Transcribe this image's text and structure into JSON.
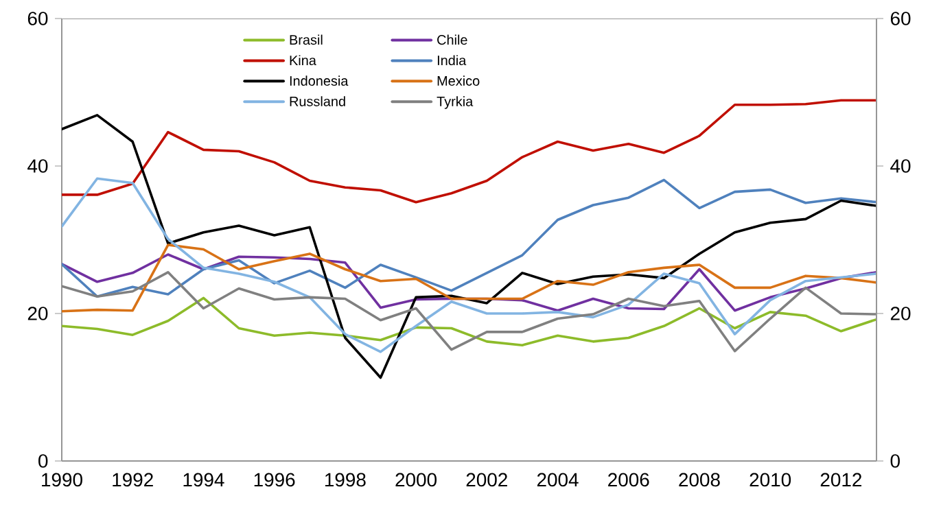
{
  "chart_data": {
    "type": "line",
    "x": [
      1990,
      1991,
      1992,
      1993,
      1994,
      1995,
      1996,
      1997,
      1998,
      1999,
      2000,
      2001,
      2002,
      2003,
      2004,
      2005,
      2006,
      2007,
      2008,
      2009,
      2010,
      2011,
      2012,
      2013
    ],
    "xlim": [
      1990,
      2013
    ],
    "xticks": [
      1990,
      1992,
      1994,
      1996,
      1998,
      2000,
      2002,
      2004,
      2006,
      2008,
      2010,
      2012
    ],
    "ylim": [
      0,
      60
    ],
    "yticks": [
      0,
      20,
      40,
      60
    ],
    "y2lim": [
      0,
      60
    ],
    "y2ticks": [
      0,
      20,
      40,
      60
    ],
    "grid": false,
    "legend": "top",
    "marker": "none",
    "line_style": "solid",
    "series": [
      {
        "name": "Brasil",
        "color": "#8dbb2a",
        "values": [
          18.3,
          17.9,
          17.1,
          19.0,
          22.1,
          18.0,
          17.0,
          17.4,
          17.0,
          16.4,
          18.1,
          18.0,
          16.2,
          15.7,
          17.0,
          16.2,
          16.7,
          18.3,
          20.7,
          18.0,
          20.2,
          19.7,
          17.6,
          19.2
        ]
      },
      {
        "name": "Chile",
        "color": "#7030a0",
        "values": [
          26.7,
          24.3,
          25.5,
          28.0,
          26.0,
          27.7,
          27.6,
          27.4,
          26.9,
          20.8,
          21.9,
          22.0,
          22.0,
          21.8,
          20.4,
          22.0,
          20.7,
          20.6,
          26.0,
          20.4,
          22.2,
          23.4,
          24.8,
          25.6
        ]
      },
      {
        "name": "Kina",
        "color": "#c00f00",
        "values": [
          36.1,
          36.1,
          37.6,
          44.6,
          42.2,
          42.0,
          40.5,
          38.0,
          37.1,
          36.7,
          35.1,
          36.3,
          38.0,
          41.2,
          43.3,
          42.1,
          43.0,
          41.8,
          44.1,
          48.3,
          48.3,
          48.4,
          48.9,
          48.9
        ]
      },
      {
        "name": "India",
        "color": "#4f81bd",
        "values": [
          26.7,
          22.3,
          23.6,
          22.6,
          26.0,
          27.2,
          24.1,
          25.8,
          23.5,
          26.6,
          24.9,
          23.1,
          25.5,
          27.9,
          32.7,
          34.7,
          35.7,
          38.1,
          34.3,
          36.5,
          36.8,
          35.0,
          35.6,
          35.1
        ]
      },
      {
        "name": "Indonesia",
        "color": "#000000",
        "values": [
          45.0,
          46.9,
          43.3,
          29.5,
          31.0,
          31.9,
          30.6,
          31.7,
          16.7,
          11.3,
          22.2,
          22.4,
          21.4,
          25.5,
          24.0,
          25.0,
          25.3,
          24.8,
          28.1,
          31.0,
          32.3,
          32.8,
          35.3,
          34.6
        ]
      },
      {
        "name": "Mexico",
        "color": "#d87216",
        "values": [
          20.3,
          20.5,
          20.4,
          29.3,
          28.7,
          26.0,
          27.1,
          28.1,
          26.0,
          24.4,
          24.7,
          22.0,
          22.0,
          22.0,
          24.4,
          23.9,
          25.6,
          26.2,
          26.6,
          23.5,
          23.5,
          25.1,
          24.8,
          24.2
        ]
      },
      {
        "name": "Russland",
        "color": "#82b4e2",
        "values": [
          31.8,
          38.3,
          37.7,
          30.1,
          26.2,
          25.4,
          24.3,
          22.2,
          17.2,
          14.8,
          18.3,
          21.6,
          20.0,
          20.0,
          20.2,
          19.5,
          21.2,
          25.4,
          24.1,
          17.2,
          21.8,
          24.4,
          24.9,
          25.4
        ]
      },
      {
        "name": "Tyrkia",
        "color": "#808080",
        "values": [
          23.7,
          22.3,
          23.0,
          25.6,
          20.7,
          23.4,
          21.9,
          22.2,
          22.0,
          19.1,
          20.7,
          15.1,
          17.5,
          17.5,
          19.3,
          19.9,
          22.0,
          21.0,
          21.7,
          14.9,
          19.3,
          23.5,
          20.0,
          19.9
        ]
      }
    ]
  }
}
